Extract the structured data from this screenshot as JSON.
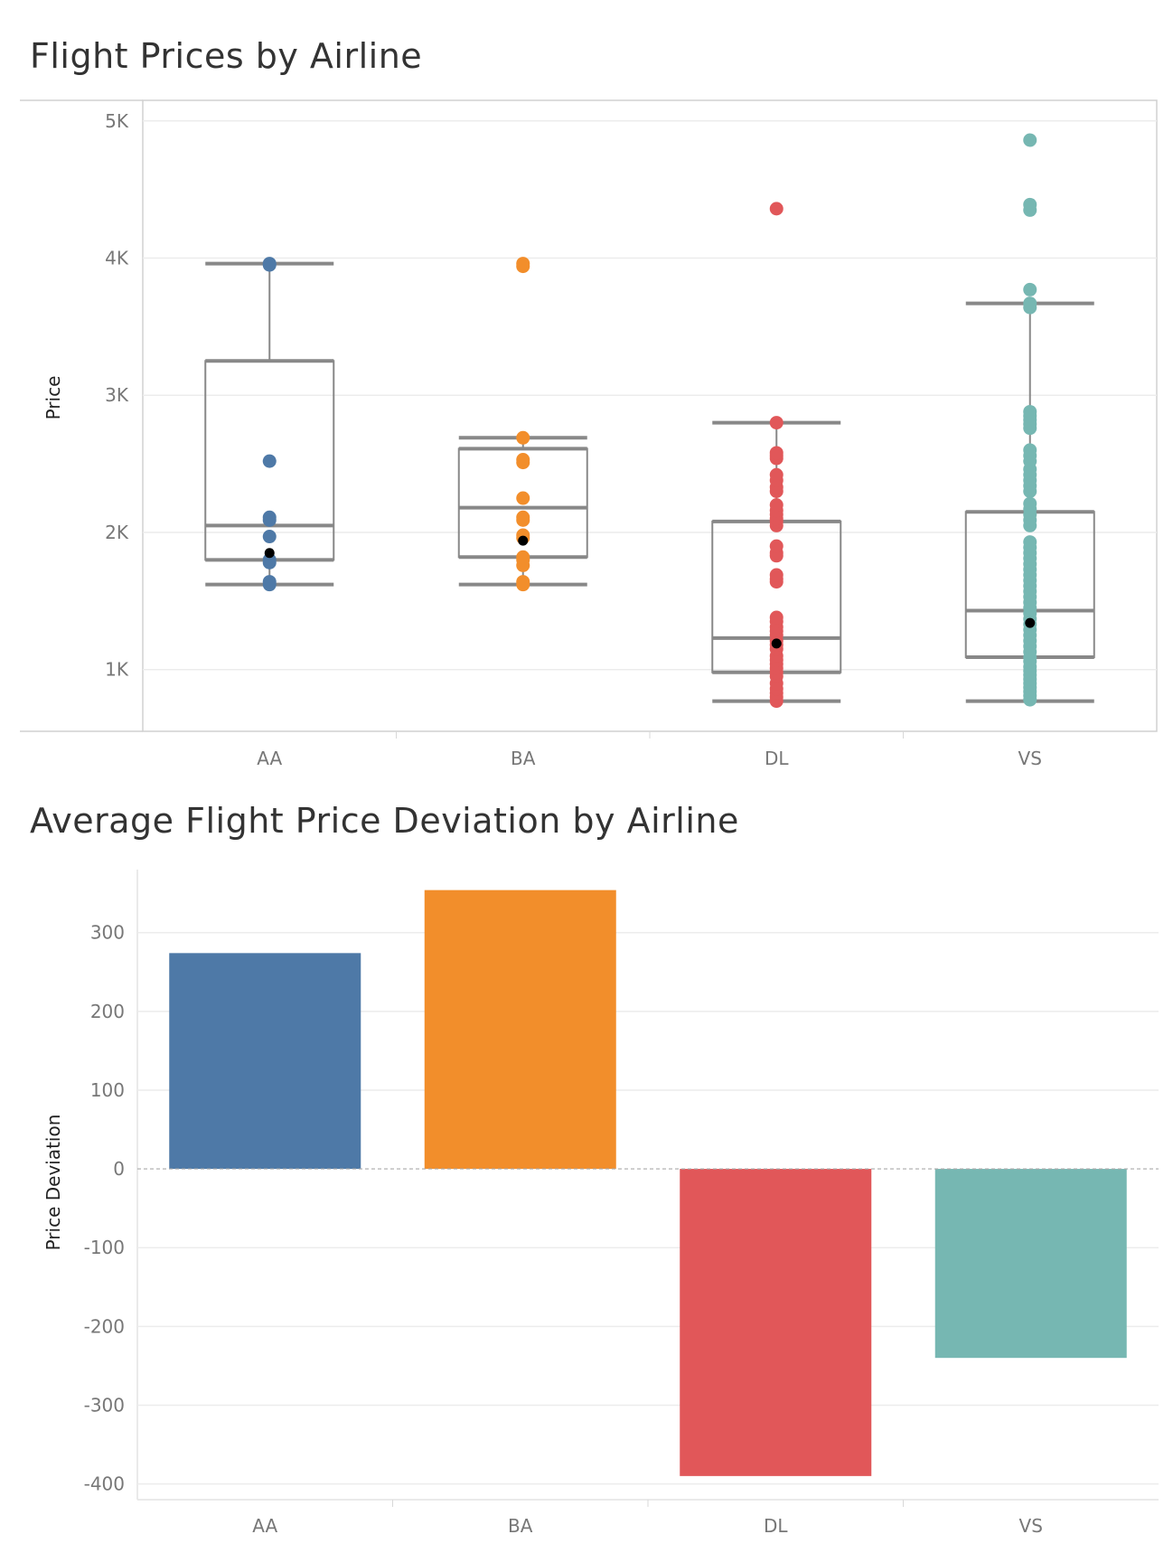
{
  "chart_data": [
    {
      "type": "box",
      "title": "Flight Prices by Airline",
      "ylabel": "Price",
      "xlabel": "",
      "ylim": [
        550,
        5150
      ],
      "yticks": [
        1000,
        2000,
        3000,
        4000,
        5000
      ],
      "ytick_labels": [
        "1K",
        "2K",
        "3K",
        "4K",
        "5K"
      ],
      "categories": [
        "AA",
        "BA",
        "DL",
        "VS"
      ],
      "colors": [
        "#4e79a7",
        "#f28e2b",
        "#e15759",
        "#76b7b2"
      ],
      "boxes": [
        {
          "whisker_low": 1620,
          "q1": 1800,
          "median": 2050,
          "q3": 3250,
          "whisker_high": 3960,
          "mean": 1850,
          "points": [
            1620,
            1640,
            1780,
            1800,
            1970,
            2090,
            2110,
            2520,
            3950,
            3960
          ]
        },
        {
          "whisker_low": 1620,
          "q1": 1820,
          "median": 2180,
          "q3": 2610,
          "whisker_high": 2690,
          "mean": 1940,
          "points": [
            1620,
            1640,
            1760,
            1800,
            1820,
            1960,
            1980,
            2090,
            2110,
            2250,
            2510,
            2530,
            2690,
            3940,
            3960
          ]
        },
        {
          "whisker_low": 770,
          "q1": 980,
          "median": 1230,
          "q3": 2080,
          "whisker_high": 2800,
          "mean": 1190,
          "points": [
            770,
            800,
            830,
            860,
            900,
            950,
            980,
            1010,
            1040,
            1070,
            1100,
            1150,
            1180,
            1210,
            1250,
            1280,
            1310,
            1350,
            1380,
            1640,
            1660,
            1690,
            1830,
            1850,
            1900,
            2050,
            2080,
            2100,
            2130,
            2160,
            2200,
            2300,
            2330,
            2380,
            2420,
            2540,
            2560,
            2580,
            2800,
            4360
          ]
        },
        {
          "whisker_low": 770,
          "q1": 1090,
          "median": 1430,
          "q3": 2150,
          "whisker_high": 3670,
          "mean": 1340,
          "points": [
            780,
            810,
            840,
            870,
            900,
            930,
            960,
            990,
            1020,
            1060,
            1090,
            1130,
            1170,
            1210,
            1250,
            1290,
            1330,
            1370,
            1410,
            1450,
            1490,
            1530,
            1570,
            1610,
            1650,
            1690,
            1730,
            1770,
            1810,
            1850,
            1890,
            1930,
            2050,
            2090,
            2130,
            2170,
            2210,
            2300,
            2340,
            2380,
            2420,
            2460,
            2520,
            2560,
            2600,
            2760,
            2790,
            2820,
            2850,
            2880,
            3640,
            3670,
            3770,
            4350,
            4390,
            4860
          ]
        }
      ]
    },
    {
      "type": "bar",
      "title": "Average Flight Price Deviation by Airline",
      "ylabel": "Price Deviation",
      "xlabel": "",
      "ylim": [
        -420,
        380
      ],
      "yticks": [
        -400,
        -300,
        -200,
        -100,
        0,
        100,
        200,
        300
      ],
      "ytick_labels": [
        "-400",
        "-300",
        "-200",
        "-100",
        "0",
        "100",
        "200",
        "300"
      ],
      "categories": [
        "AA",
        "BA",
        "DL",
        "VS"
      ],
      "values": [
        274,
        354,
        -390,
        -240
      ],
      "colors": [
        "#4e79a7",
        "#f28e2b",
        "#e15759",
        "#76b7b2"
      ]
    }
  ]
}
